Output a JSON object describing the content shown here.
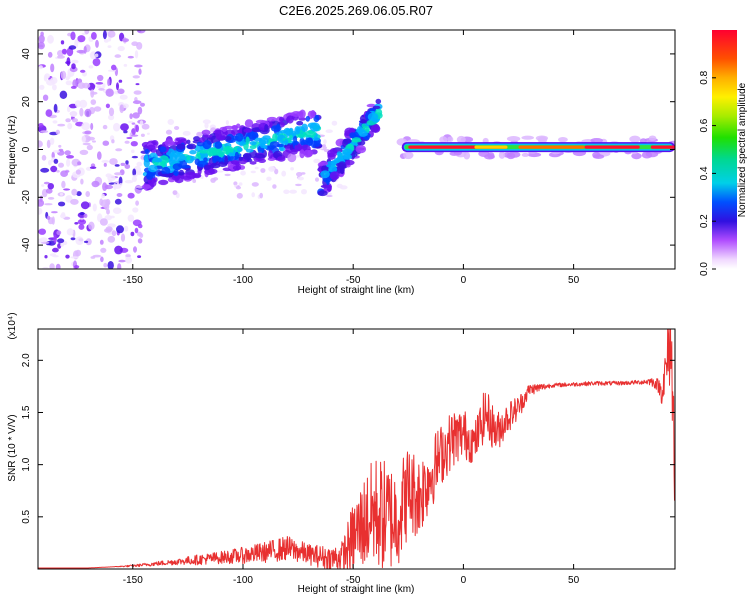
{
  "title": "C2E6.2025.269.06.05.R07",
  "colors": {
    "line": "#e83030",
    "axis": "#000000",
    "background": "#ffffff"
  },
  "chart_data": [
    {
      "type": "heatmap",
      "id": "spectrogram",
      "xlabel": "Height of straight line (km)",
      "ylabel": "Frequency (Hz)",
      "xlim": [
        -193,
        96
      ],
      "ylim": [
        -50,
        50
      ],
      "x_ticks": [
        -150,
        -100,
        -50,
        0,
        50
      ],
      "y_ticks": [
        -40,
        -20,
        0,
        20,
        40
      ],
      "colorbar": {
        "label": "Normalized spectral amplitude",
        "range": [
          0,
          1
        ],
        "ticks": [
          "0.0",
          "0.2",
          "0.4",
          "0.6",
          "0.8"
        ]
      },
      "features": [
        {
          "name": "noisy region",
          "x": [
            -193,
            -145
          ],
          "frequency": [
            -50,
            50
          ],
          "amplitude": "low"
        },
        {
          "name": "ascending trace",
          "x": [
            -145,
            -65
          ],
          "frequency_start": -7,
          "frequency_end": 8,
          "amplitude": "medium"
        },
        {
          "name": "steep ascending trace",
          "x": [
            -65,
            -38
          ],
          "frequency_start": -14,
          "frequency_end": 16,
          "amplitude": "medium"
        },
        {
          "name": "flat trace",
          "x": [
            -28,
            96
          ],
          "frequency": 1,
          "amplitude": "high"
        }
      ]
    },
    {
      "type": "line",
      "id": "snr",
      "xlabel": "Height of straight line (km)",
      "ylabel": "SNR (10 * V/V)",
      "y_scale_label": "(x10⁴)",
      "xlim": [
        -193,
        96
      ],
      "ylim": [
        0,
        2.3
      ],
      "x_ticks": [
        -150,
        -100,
        -50,
        0,
        50
      ],
      "y_ticks": [
        "0.5",
        "1.0",
        "1.5",
        "2.0"
      ],
      "series": [
        {
          "name": "SNR",
          "x": [
            -193,
            -180,
            -170,
            -160,
            -150,
            -140,
            -130,
            -120,
            -110,
            -100,
            -90,
            -80,
            -70,
            -60,
            -55,
            -50,
            -45,
            -40,
            -35,
            -30,
            -25,
            -20,
            -15,
            -10,
            -5,
            0,
            5,
            10,
            15,
            20,
            25,
            30,
            40,
            50,
            60,
            70,
            80,
            85,
            88,
            90,
            92,
            94,
            96
          ],
          "values": [
            0.01,
            0.01,
            0.01,
            0.02,
            0.03,
            0.05,
            0.07,
            0.09,
            0.11,
            0.13,
            0.16,
            0.2,
            0.14,
            0.1,
            0.12,
            0.3,
            0.45,
            0.55,
            0.5,
            0.5,
            0.75,
            0.7,
            0.9,
            1.1,
            1.25,
            1.3,
            1.2,
            1.5,
            1.3,
            1.45,
            1.55,
            1.72,
            1.76,
            1.77,
            1.78,
            1.78,
            1.79,
            1.8,
            1.77,
            1.7,
            1.9,
            2.2,
            1.0
          ],
          "noise": [
            0.0,
            0.0,
            0.0,
            0.0,
            0.01,
            0.02,
            0.03,
            0.05,
            0.06,
            0.08,
            0.1,
            0.12,
            0.1,
            0.12,
            0.15,
            0.35,
            0.45,
            0.55,
            0.55,
            0.5,
            0.45,
            0.4,
            0.35,
            0.3,
            0.28,
            0.25,
            0.2,
            0.25,
            0.2,
            0.15,
            0.12,
            0.06,
            0.02,
            0.02,
            0.02,
            0.02,
            0.02,
            0.04,
            0.06,
            0.12,
            0.3,
            0.45,
            0.5
          ]
        }
      ]
    }
  ]
}
